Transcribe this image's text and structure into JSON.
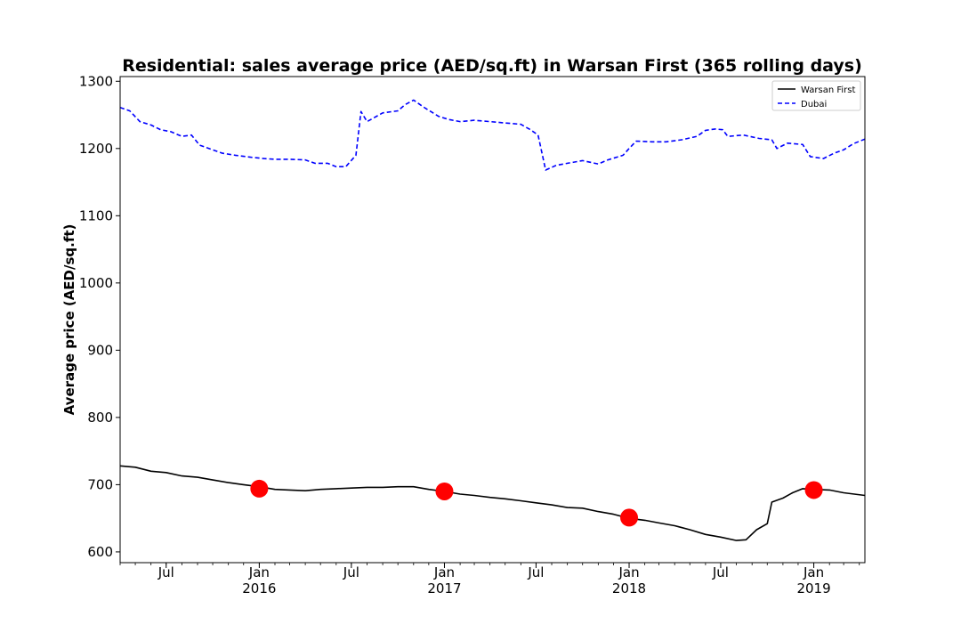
{
  "chart_data": {
    "type": "line",
    "title": "Residential: sales average price (AED/sq.ft) in Warsan First (365 rolling days)",
    "xlabel": "",
    "ylabel": "Average price (AED/sq.ft)",
    "ylim": [
      584,
      1307
    ],
    "xlim": [
      "2015-04-01",
      "2019-04-12"
    ],
    "grid": false,
    "legend_position": "top-right",
    "y_ticks": [
      600,
      700,
      800,
      900,
      1000,
      1100,
      1200,
      1300
    ],
    "x_ticks": [
      {
        "date": "2015-07-01",
        "label": "Jul",
        "year": ""
      },
      {
        "date": "2016-01-01",
        "label": "Jan",
        "year": "2016"
      },
      {
        "date": "2016-07-01",
        "label": "Jul",
        "year": ""
      },
      {
        "date": "2017-01-01",
        "label": "Jan",
        "year": "2017"
      },
      {
        "date": "2017-07-01",
        "label": "Jul",
        "year": ""
      },
      {
        "date": "2018-01-01",
        "label": "Jan",
        "year": "2018"
      },
      {
        "date": "2018-07-01",
        "label": "Jul",
        "year": ""
      },
      {
        "date": "2019-01-01",
        "label": "Jan",
        "year": "2019"
      }
    ],
    "series": [
      {
        "name": "Warsan First",
        "color": "#000000",
        "style": "solid",
        "points": [
          [
            "2015-04-01",
            728
          ],
          [
            "2015-05-01",
            726
          ],
          [
            "2015-06-01",
            720
          ],
          [
            "2015-07-01",
            718
          ],
          [
            "2015-08-01",
            713
          ],
          [
            "2015-09-01",
            711
          ],
          [
            "2015-10-01",
            707
          ],
          [
            "2015-11-01",
            703
          ],
          [
            "2015-12-01",
            700
          ],
          [
            "2016-01-01",
            697
          ],
          [
            "2016-02-01",
            693
          ],
          [
            "2016-03-01",
            692
          ],
          [
            "2016-04-01",
            691
          ],
          [
            "2016-05-01",
            693
          ],
          [
            "2016-06-01",
            694
          ],
          [
            "2016-07-01",
            695
          ],
          [
            "2016-08-01",
            696
          ],
          [
            "2016-09-01",
            696
          ],
          [
            "2016-10-01",
            697
          ],
          [
            "2016-11-01",
            697
          ],
          [
            "2016-12-01",
            693
          ],
          [
            "2017-01-01",
            690
          ],
          [
            "2017-02-01",
            686
          ],
          [
            "2017-03-01",
            684
          ],
          [
            "2017-04-01",
            681
          ],
          [
            "2017-05-01",
            679
          ],
          [
            "2017-06-01",
            676
          ],
          [
            "2017-07-01",
            673
          ],
          [
            "2017-08-01",
            670
          ],
          [
            "2017-09-01",
            666
          ],
          [
            "2017-10-01",
            665
          ],
          [
            "2017-11-01",
            660
          ],
          [
            "2017-12-01",
            656
          ],
          [
            "2018-01-01",
            650
          ],
          [
            "2018-02-01",
            647
          ],
          [
            "2018-03-01",
            643
          ],
          [
            "2018-04-01",
            639
          ],
          [
            "2018-05-01",
            633
          ],
          [
            "2018-06-01",
            626
          ],
          [
            "2018-07-01",
            622
          ],
          [
            "2018-08-01",
            617
          ],
          [
            "2018-08-20",
            618
          ],
          [
            "2018-09-10",
            633
          ],
          [
            "2018-10-01",
            642
          ],
          [
            "2018-10-10",
            674
          ],
          [
            "2018-11-01",
            680
          ],
          [
            "2018-11-20",
            688
          ],
          [
            "2018-12-10",
            694
          ],
          [
            "2019-01-01",
            693
          ],
          [
            "2019-02-01",
            692
          ],
          [
            "2019-03-01",
            688
          ],
          [
            "2019-04-12",
            684
          ]
        ]
      },
      {
        "name": "Dubai",
        "color": "#0000ff",
        "style": "dashed",
        "points": [
          [
            "2015-04-01",
            1261
          ],
          [
            "2015-04-20",
            1256
          ],
          [
            "2015-05-10",
            1240
          ],
          [
            "2015-06-01",
            1235
          ],
          [
            "2015-06-20",
            1228
          ],
          [
            "2015-07-10",
            1225
          ],
          [
            "2015-08-01",
            1218
          ],
          [
            "2015-08-20",
            1220
          ],
          [
            "2015-09-05",
            1205
          ],
          [
            "2015-10-01",
            1198
          ],
          [
            "2015-10-20",
            1193
          ],
          [
            "2015-11-15",
            1190
          ],
          [
            "2015-12-15",
            1187
          ],
          [
            "2016-01-10",
            1185
          ],
          [
            "2016-02-01",
            1184
          ],
          [
            "2016-03-01",
            1184
          ],
          [
            "2016-04-01",
            1183
          ],
          [
            "2016-04-20",
            1178
          ],
          [
            "2016-05-15",
            1178
          ],
          [
            "2016-06-01",
            1173
          ],
          [
            "2016-06-20",
            1173
          ],
          [
            "2016-07-10",
            1190
          ],
          [
            "2016-07-20",
            1255
          ],
          [
            "2016-08-01",
            1240
          ],
          [
            "2016-09-01",
            1253
          ],
          [
            "2016-10-01",
            1256
          ],
          [
            "2016-10-15",
            1265
          ],
          [
            "2016-11-01",
            1272
          ],
          [
            "2016-11-20",
            1262
          ],
          [
            "2016-12-20",
            1248
          ],
          [
            "2017-01-10",
            1243
          ],
          [
            "2017-02-01",
            1240
          ],
          [
            "2017-03-01",
            1242
          ],
          [
            "2017-04-01",
            1240
          ],
          [
            "2017-05-01",
            1238
          ],
          [
            "2017-06-01",
            1236
          ],
          [
            "2017-06-20",
            1228
          ],
          [
            "2017-07-05",
            1220
          ],
          [
            "2017-07-20",
            1168
          ],
          [
            "2017-08-10",
            1175
          ],
          [
            "2017-09-01",
            1178
          ],
          [
            "2017-10-01",
            1182
          ],
          [
            "2017-11-01",
            1177
          ],
          [
            "2017-11-20",
            1183
          ],
          [
            "2017-12-20",
            1190
          ],
          [
            "2018-01-01",
            1200
          ],
          [
            "2018-01-15",
            1211
          ],
          [
            "2018-02-15",
            1210
          ],
          [
            "2018-03-15",
            1210
          ],
          [
            "2018-04-15",
            1213
          ],
          [
            "2018-05-15",
            1218
          ],
          [
            "2018-06-01",
            1227
          ],
          [
            "2018-06-20",
            1229
          ],
          [
            "2018-07-05",
            1228
          ],
          [
            "2018-07-15",
            1218
          ],
          [
            "2018-08-15",
            1220
          ],
          [
            "2018-09-15",
            1215
          ],
          [
            "2018-10-10",
            1213
          ],
          [
            "2018-10-20",
            1200
          ],
          [
            "2018-11-10",
            1208
          ],
          [
            "2018-12-10",
            1206
          ],
          [
            "2018-12-25",
            1188
          ],
          [
            "2019-01-20",
            1185
          ],
          [
            "2019-02-10",
            1193
          ],
          [
            "2019-03-01",
            1198
          ],
          [
            "2019-03-20",
            1207
          ],
          [
            "2019-04-12",
            1214
          ]
        ]
      }
    ],
    "markers": {
      "color": "#ff0000",
      "points": [
        [
          "2016-01-01",
          694
        ],
        [
          "2017-01-01",
          690
        ],
        [
          "2018-01-01",
          651
        ],
        [
          "2019-01-01",
          692
        ]
      ]
    }
  }
}
